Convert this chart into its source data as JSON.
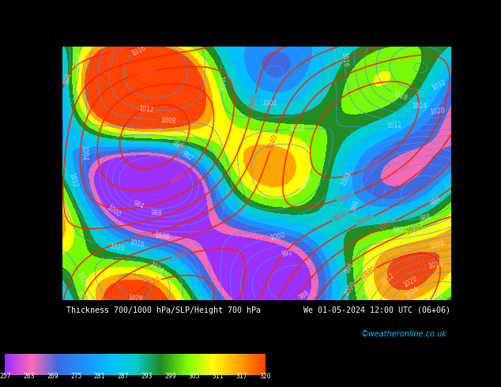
{
  "title_left": "Thickness 700/1000 hPa/SLP/Height 700 hPa",
  "title_right": "We 01-05-2024 12:00 UTC (06+06)",
  "credit": "©weatheronline.co.uk",
  "colorbar_values": [
    257,
    263,
    269,
    275,
    281,
    287,
    293,
    299,
    305,
    311,
    317,
    320
  ],
  "colorbar_colors": [
    "#9B30FF",
    "#FF69B4",
    "#4169E1",
    "#1E90FF",
    "#00BFFF",
    "#00CED1",
    "#228B22",
    "#7CFC00",
    "#FFFF00",
    "#FFA500",
    "#FF4500"
  ],
  "bg_color": "#000000",
  "text_color_left": "#FFFFFF",
  "text_color_right": "#FFFFFF",
  "credit_color": "#00BFFF",
  "map_bg_color": "#4169E1",
  "colorbar_label_color": "#FFFFFF",
  "fig_width": 6.34,
  "fig_height": 4.9
}
